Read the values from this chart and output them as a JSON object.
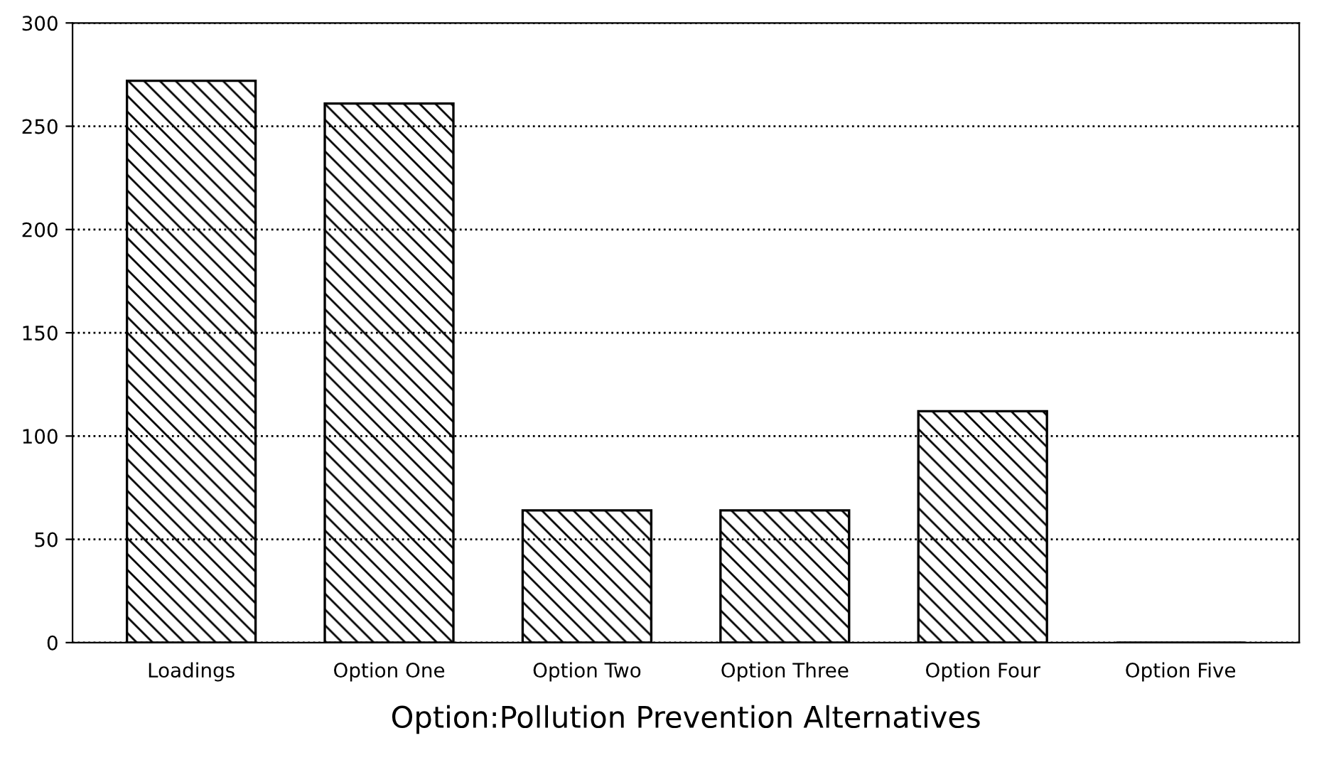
{
  "chart_data": {
    "type": "bar",
    "xlabel": "Option:Pollution Prevention Alternatives",
    "categories": [
      "Loadings",
      "Option One",
      "Option Two",
      "Option Three",
      "Option Four",
      "Option Five"
    ],
    "values": [
      272,
      261,
      64,
      64,
      112,
      0
    ],
    "color": "#000000",
    "ylim": [
      0,
      300
    ],
    "yticks": [
      0,
      50,
      100,
      150,
      200,
      250,
      300
    ],
    "grid": "y",
    "line_style": "dotted"
  }
}
